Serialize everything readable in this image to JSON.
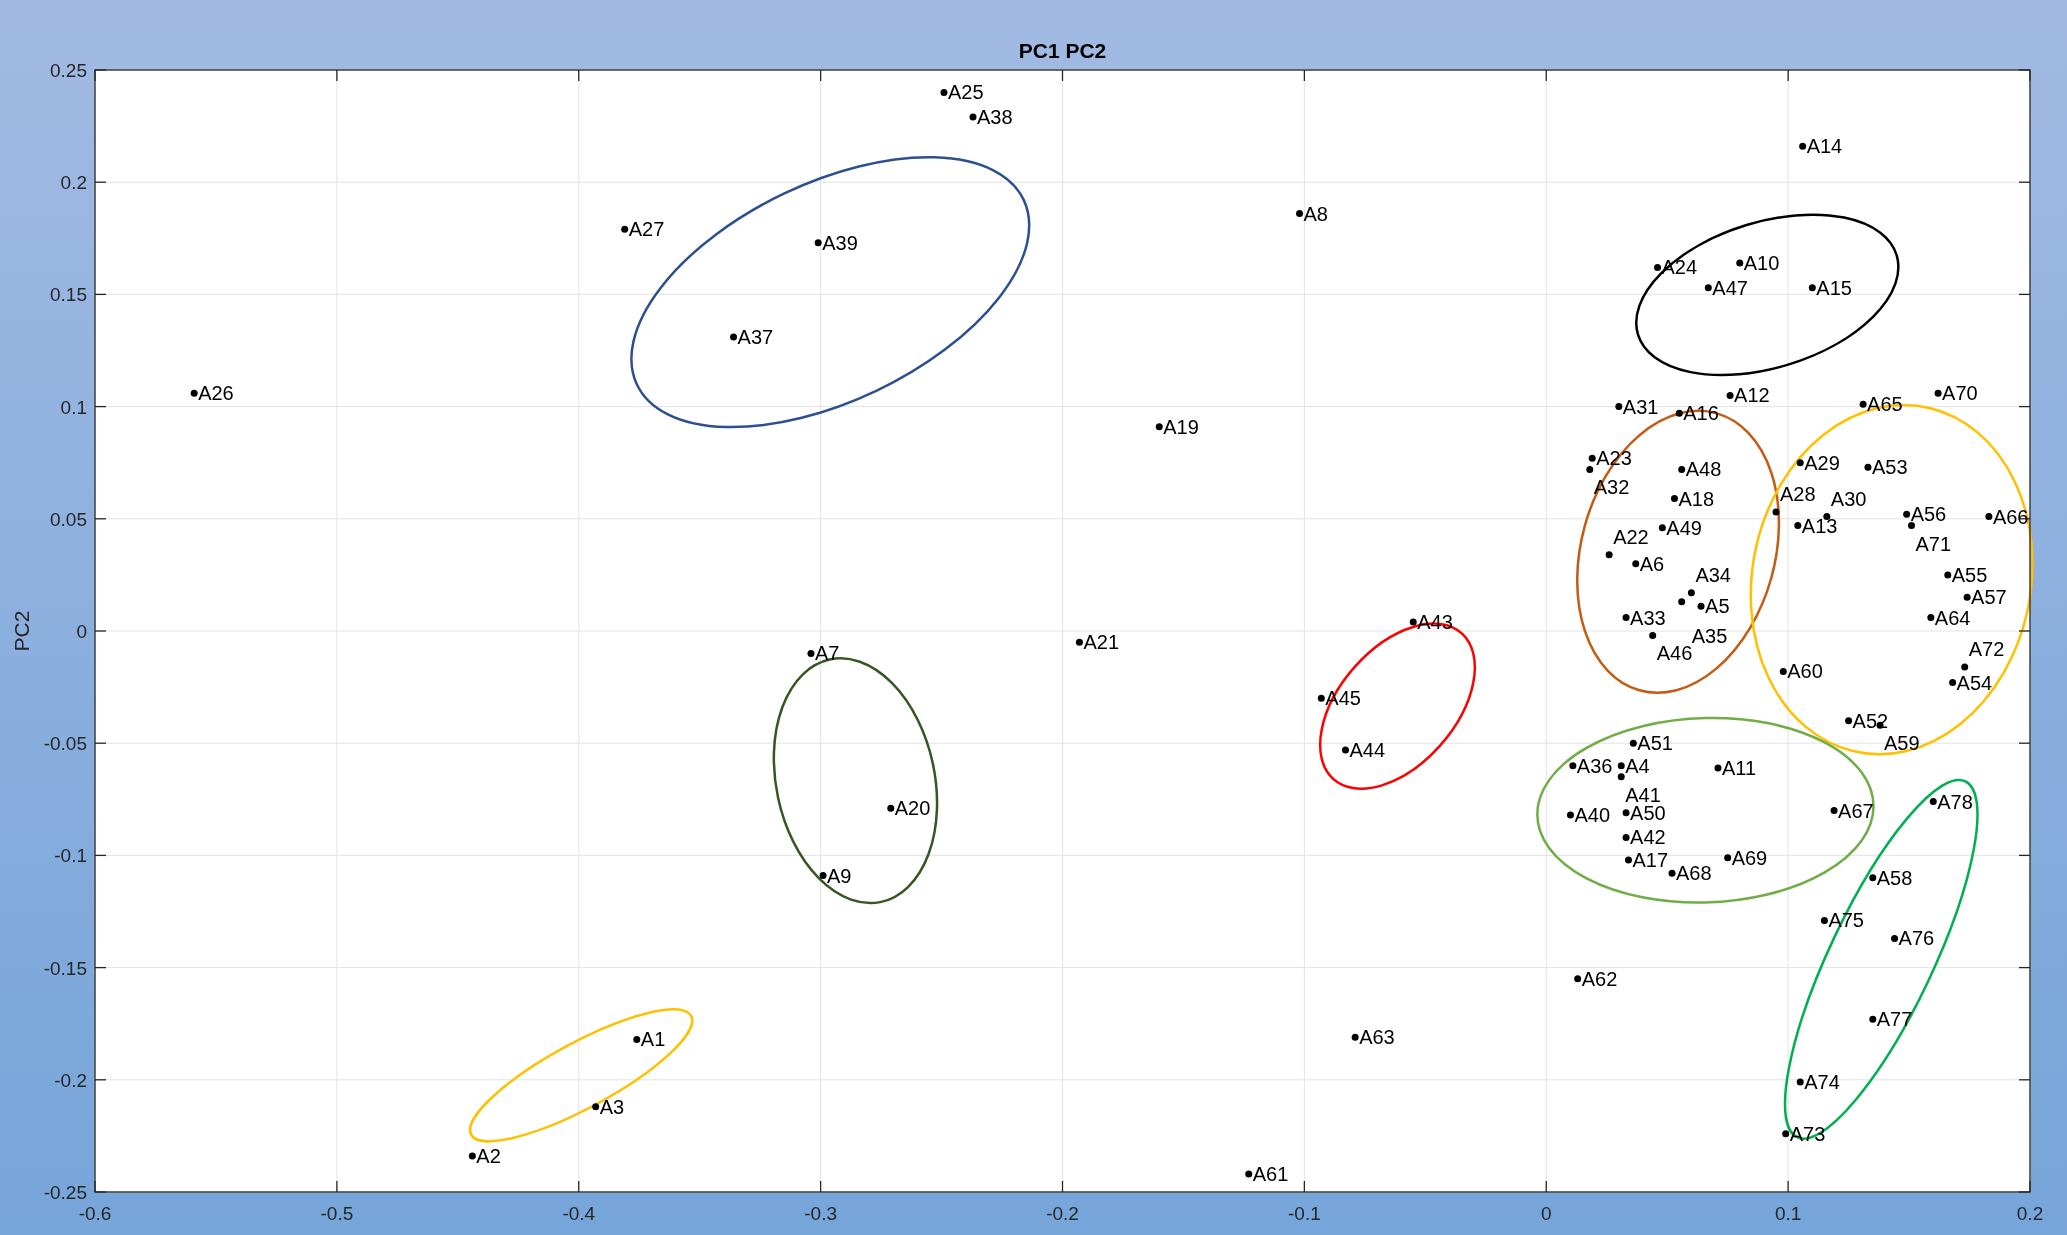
{
  "chart_data": {
    "type": "scatter",
    "title": "PC1 PC2",
    "ylabel": "PC2",
    "color": "#000000",
    "marker": "circle",
    "grid": true,
    "xlim": [
      -0.6,
      0.2
    ],
    "ylim": [
      -0.25,
      0.25
    ],
    "xticks": [
      -0.6,
      -0.5,
      -0.4,
      -0.3,
      -0.2,
      -0.1,
      0,
      0.1,
      0.2
    ],
    "yticks": [
      -0.25,
      -0.2,
      -0.15,
      -0.1,
      -0.05,
      0,
      0.05,
      0.1,
      0.15,
      0.2,
      0.25
    ],
    "x": [
      -0.376,
      -0.444,
      -0.393,
      0.031,
      0.064,
      0.037,
      -0.304,
      -0.102,
      -0.299,
      0.08,
      0.071,
      0.076,
      0.104,
      0.106,
      0.11,
      0.055,
      0.034,
      0.053,
      -0.16,
      -0.271,
      -0.193,
      0.026,
      0.019,
      0.046,
      -0.249,
      -0.559,
      -0.381,
      0.095,
      0.105,
      0.116,
      0.03,
      0.018,
      0.033,
      0.06,
      0.056,
      0.011,
      -0.336,
      -0.237,
      -0.301,
      0.01,
      0.031,
      0.033,
      -0.055,
      -0.083,
      -0.093,
      0.044,
      0.067,
      0.056,
      0.048,
      0.033,
      0.036,
      0.125,
      0.133,
      0.168,
      0.166,
      0.149,
      0.174,
      0.135,
      0.138,
      0.098,
      -0.123,
      0.013,
      -0.079,
      0.159,
      0.131,
      0.183,
      0.119,
      0.052,
      0.075,
      0.162,
      0.151,
      0.173,
      0.099,
      0.105,
      0.115,
      0.144,
      0.135,
      0.16
    ],
    "values": [
      -0.182,
      -0.234,
      -0.212,
      -0.06,
      0.011,
      0.03,
      -0.01,
      0.186,
      -0.109,
      0.164,
      -0.061,
      0.105,
      0.047,
      0.216,
      0.153,
      0.097,
      -0.102,
      0.059,
      0.091,
      -0.079,
      -0.005,
      0.034,
      0.077,
      0.162,
      0.24,
      0.106,
      0.179,
      0.053,
      0.075,
      0.051,
      0.1,
      0.072,
      0.006,
      0.017,
      0.013,
      -0.06,
      0.131,
      0.229,
      0.173,
      -0.082,
      -0.065,
      -0.092,
      0.004,
      -0.053,
      -0.03,
      -0.002,
      0.153,
      0.072,
      0.046,
      -0.081,
      -0.05,
      -0.04,
      0.073,
      -0.023,
      0.025,
      0.052,
      0.015,
      -0.11,
      -0.042,
      -0.018,
      -0.242,
      -0.155,
      -0.181,
      0.006,
      0.101,
      0.051,
      -0.08,
      -0.108,
      -0.101,
      0.106,
      0.047,
      -0.016,
      -0.224,
      -0.201,
      -0.129,
      -0.137,
      -0.173,
      -0.076
    ],
    "value_labels": [
      "A1",
      "A2",
      "A3",
      "A4",
      "A5",
      "A6",
      "A7",
      "A8",
      "A9",
      "A10",
      "A11",
      "A12",
      "A13",
      "A14",
      "A15",
      "A16",
      "A17",
      "A18",
      "A19",
      "A20",
      "A21",
      "A22",
      "A23",
      "A24",
      "A25",
      "A26",
      "A27",
      "A28",
      "A29",
      "A30",
      "A31",
      "A32",
      "A33",
      "A34",
      "A35",
      "A36",
      "A37",
      "A38",
      "A39",
      "A40",
      "A41",
      "A42",
      "A43",
      "A44",
      "A45",
      "A46",
      "A47",
      "A48",
      "A49",
      "A50",
      "A51",
      "A52",
      "A53",
      "A54",
      "A55",
      "A56",
      "A57",
      "A58",
      "A59",
      "A60",
      "A61",
      "A62",
      "A63",
      "A64",
      "A65",
      "A66",
      "A67",
      "A68",
      "A69",
      "A70",
      "A71",
      "A72",
      "A73",
      "A74",
      "A75",
      "A76",
      "A77",
      "A78"
    ]
  }
}
